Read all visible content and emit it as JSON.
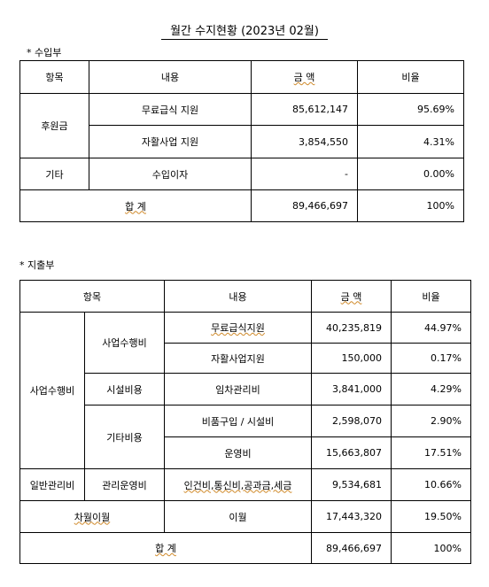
{
  "title": "월간 수지현황 (2023년 02월)",
  "income": {
    "label": "* 수입부",
    "header": [
      "항목",
      "내용",
      "금 액",
      "비율"
    ],
    "rows": [
      [
        "후원금",
        "무료급식 지원",
        "85,612,147",
        "95.69%"
      ],
      [
        "자활사업 지원",
        "3,854,550",
        "4.31%"
      ],
      [
        "기타",
        "수입이자",
        "-",
        "0.00%"
      ]
    ],
    "total": [
      "합 계",
      "89,466,697",
      "100%"
    ]
  },
  "expense": {
    "label": "* 지출부",
    "header": [
      "항목",
      "내용",
      "금 액",
      "비율"
    ],
    "rows": [
      [
        "사업수행비",
        "사업수행비",
        "무료급식지원",
        "40,235,819",
        "44.97%"
      ],
      [
        "자활사업지원",
        "150,000",
        "0.17%"
      ],
      [
        "시설비용",
        "임차관리비",
        "3,841,000",
        "4.29%"
      ],
      [
        "기타비용",
        "비품구입 / 시설비",
        "2,598,070",
        "2.90%"
      ],
      [
        "운영비",
        "15,663,807",
        "17.51%"
      ],
      [
        "일반관리비",
        "관리운영비",
        "인건비,통신비,공과금,세금",
        "9,534,681",
        "10.66%"
      ],
      [
        "차월이월",
        "이월",
        "17,443,320",
        "19.50%"
      ]
    ],
    "total": [
      "합 계",
      "89,466,697",
      "100%"
    ]
  }
}
